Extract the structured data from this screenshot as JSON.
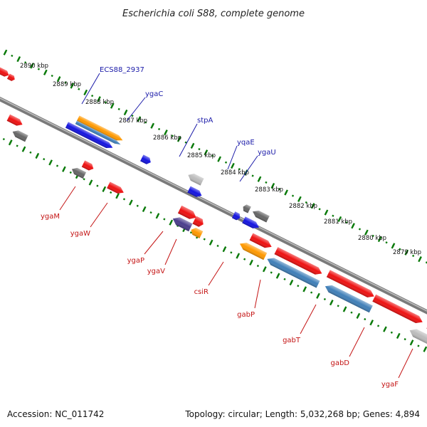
{
  "title": "Escherichia coli S88, complete genome",
  "footer": {
    "accession": "Accession: NC_011742",
    "summary": "Topology: circular; Length: 5,032,268 bp; Genes: 4,894"
  },
  "ticks": [
    "2890 kbp",
    "2889 kbp",
    "2888 kbp",
    "2887 kbp",
    "2886 kbp",
    "2885 kbp",
    "2884 kbp",
    "2883 kbp",
    "2882 kbp",
    "2881 kbp",
    "2880 kbp",
    "2879 kbp"
  ],
  "labels_top": [
    "ECS88_2937",
    "ygaC",
    "stpA",
    "yqaE",
    "ygaU"
  ],
  "labels_bottom": [
    "ygaM",
    "ygaW",
    "ygaP",
    "ygaV",
    "csiR",
    "gabP",
    "gabT",
    "gabD",
    "ygaF"
  ],
  "colors": {
    "red": "#ee1111",
    "blue": "#1414e0",
    "steel": "#3f7fb8",
    "orange": "#ff9900",
    "gray": "#666666",
    "lightgray": "#bbbbbb",
    "purple": "#4a3c8c",
    "olive": "#a8a040",
    "backbone": "#7a7a7a",
    "tickgreen": "#0a7a0a",
    "topLabel": "#1a1aa8",
    "bottomLabel": "#c41414"
  }
}
